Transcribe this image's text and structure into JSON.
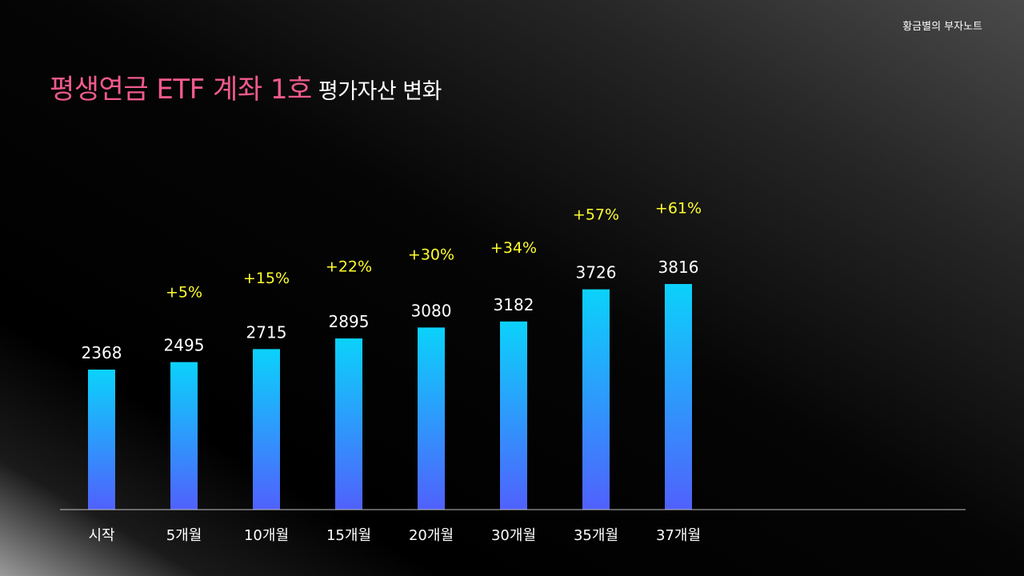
{
  "brand": "황금별의 부자노트",
  "title": {
    "main": "평생연금 ETF 계좌 1호",
    "sub": "평가자산 변화"
  },
  "colors": {
    "title_accent": "#f05a8c",
    "bar_top": "#0bd2fb",
    "bar_bottom": "#5061fc",
    "growth_label": "#ffff2e",
    "value_label": "#ffffff",
    "axis": "#bfbfbf"
  },
  "chart_data": {
    "type": "bar",
    "categories": [
      "시작",
      "5개월",
      "10개월",
      "15개월",
      "20개월",
      "30개월",
      "35개월",
      "37개월"
    ],
    "values": [
      2368,
      2495,
      2715,
      2895,
      3080,
      3182,
      3726,
      3816
    ],
    "growth_labels": [
      "",
      "+5%",
      "+15%",
      "+22%",
      "+30%",
      "+34%",
      "+57%",
      "+61%"
    ],
    "ylim": [
      0,
      3816
    ],
    "grid": false,
    "legend": "none",
    "data_labels": true
  }
}
